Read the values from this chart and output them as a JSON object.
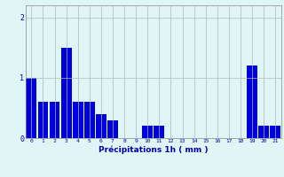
{
  "hours": [
    0,
    1,
    2,
    3,
    4,
    5,
    6,
    7,
    8,
    9,
    10,
    11,
    12,
    13,
    14,
    15,
    16,
    17,
    18,
    19,
    20,
    21
  ],
  "values": [
    1.0,
    0.6,
    0.6,
    1.5,
    0.6,
    0.6,
    0.4,
    0.3,
    0.0,
    0.0,
    0.2,
    0.2,
    0.0,
    0.0,
    0.0,
    0.0,
    0.0,
    0.0,
    0.0,
    1.2,
    0.2,
    0.2
  ],
  "bar_color": "#0000dd",
  "background_color": "#e0f5f5",
  "grid_color": "#b0b8b8",
  "axis_label_color": "#0000aa",
  "tick_color": "#0000aa",
  "xlabel": "Précipitations 1h ( mm )",
  "ylim": [
    0,
    2.2
  ],
  "yticks": [
    0,
    1,
    2
  ],
  "xlim": [
    -0.5,
    21.5
  ]
}
